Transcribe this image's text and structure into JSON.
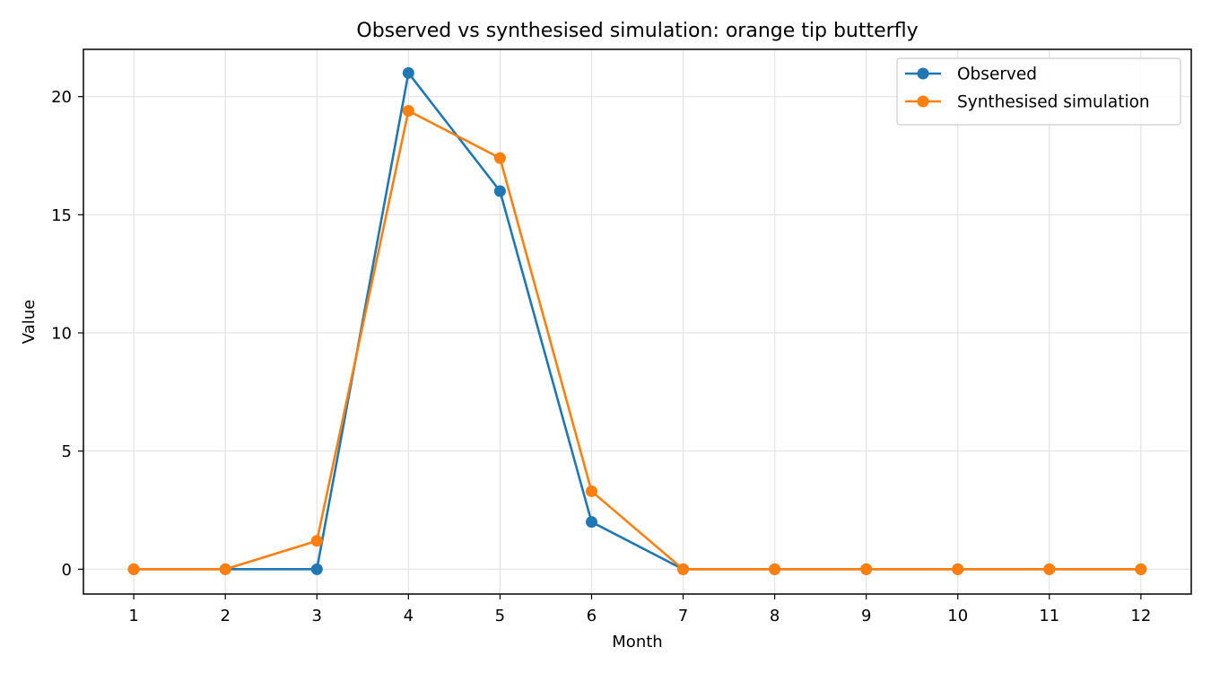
{
  "chart_data": {
    "type": "line",
    "title": "Observed vs synthesised simulation: orange tip butterfly",
    "xlabel": "Month",
    "ylabel": "Value",
    "x": [
      1,
      2,
      3,
      4,
      5,
      6,
      7,
      8,
      9,
      10,
      11,
      12
    ],
    "xlim": [
      0.45,
      12.55
    ],
    "ylim": [
      -1.05,
      22
    ],
    "xticks": [
      1,
      2,
      3,
      4,
      5,
      6,
      7,
      8,
      9,
      10,
      11,
      12
    ],
    "yticks": [
      0,
      5,
      10,
      15,
      20
    ],
    "grid": true,
    "legend_position": "top-right",
    "series": [
      {
        "name": "Observed",
        "color": "#1f77b4",
        "marker": "circle",
        "values": [
          0,
          0,
          0,
          21,
          16,
          2,
          0,
          0,
          0,
          0,
          0,
          0
        ]
      },
      {
        "name": "Synthesised simulation",
        "color": "#ff7f0e",
        "marker": "circle",
        "values": [
          0,
          0,
          1.2,
          19.4,
          17.4,
          3.3,
          0,
          0,
          0,
          0,
          0,
          0
        ]
      }
    ]
  }
}
